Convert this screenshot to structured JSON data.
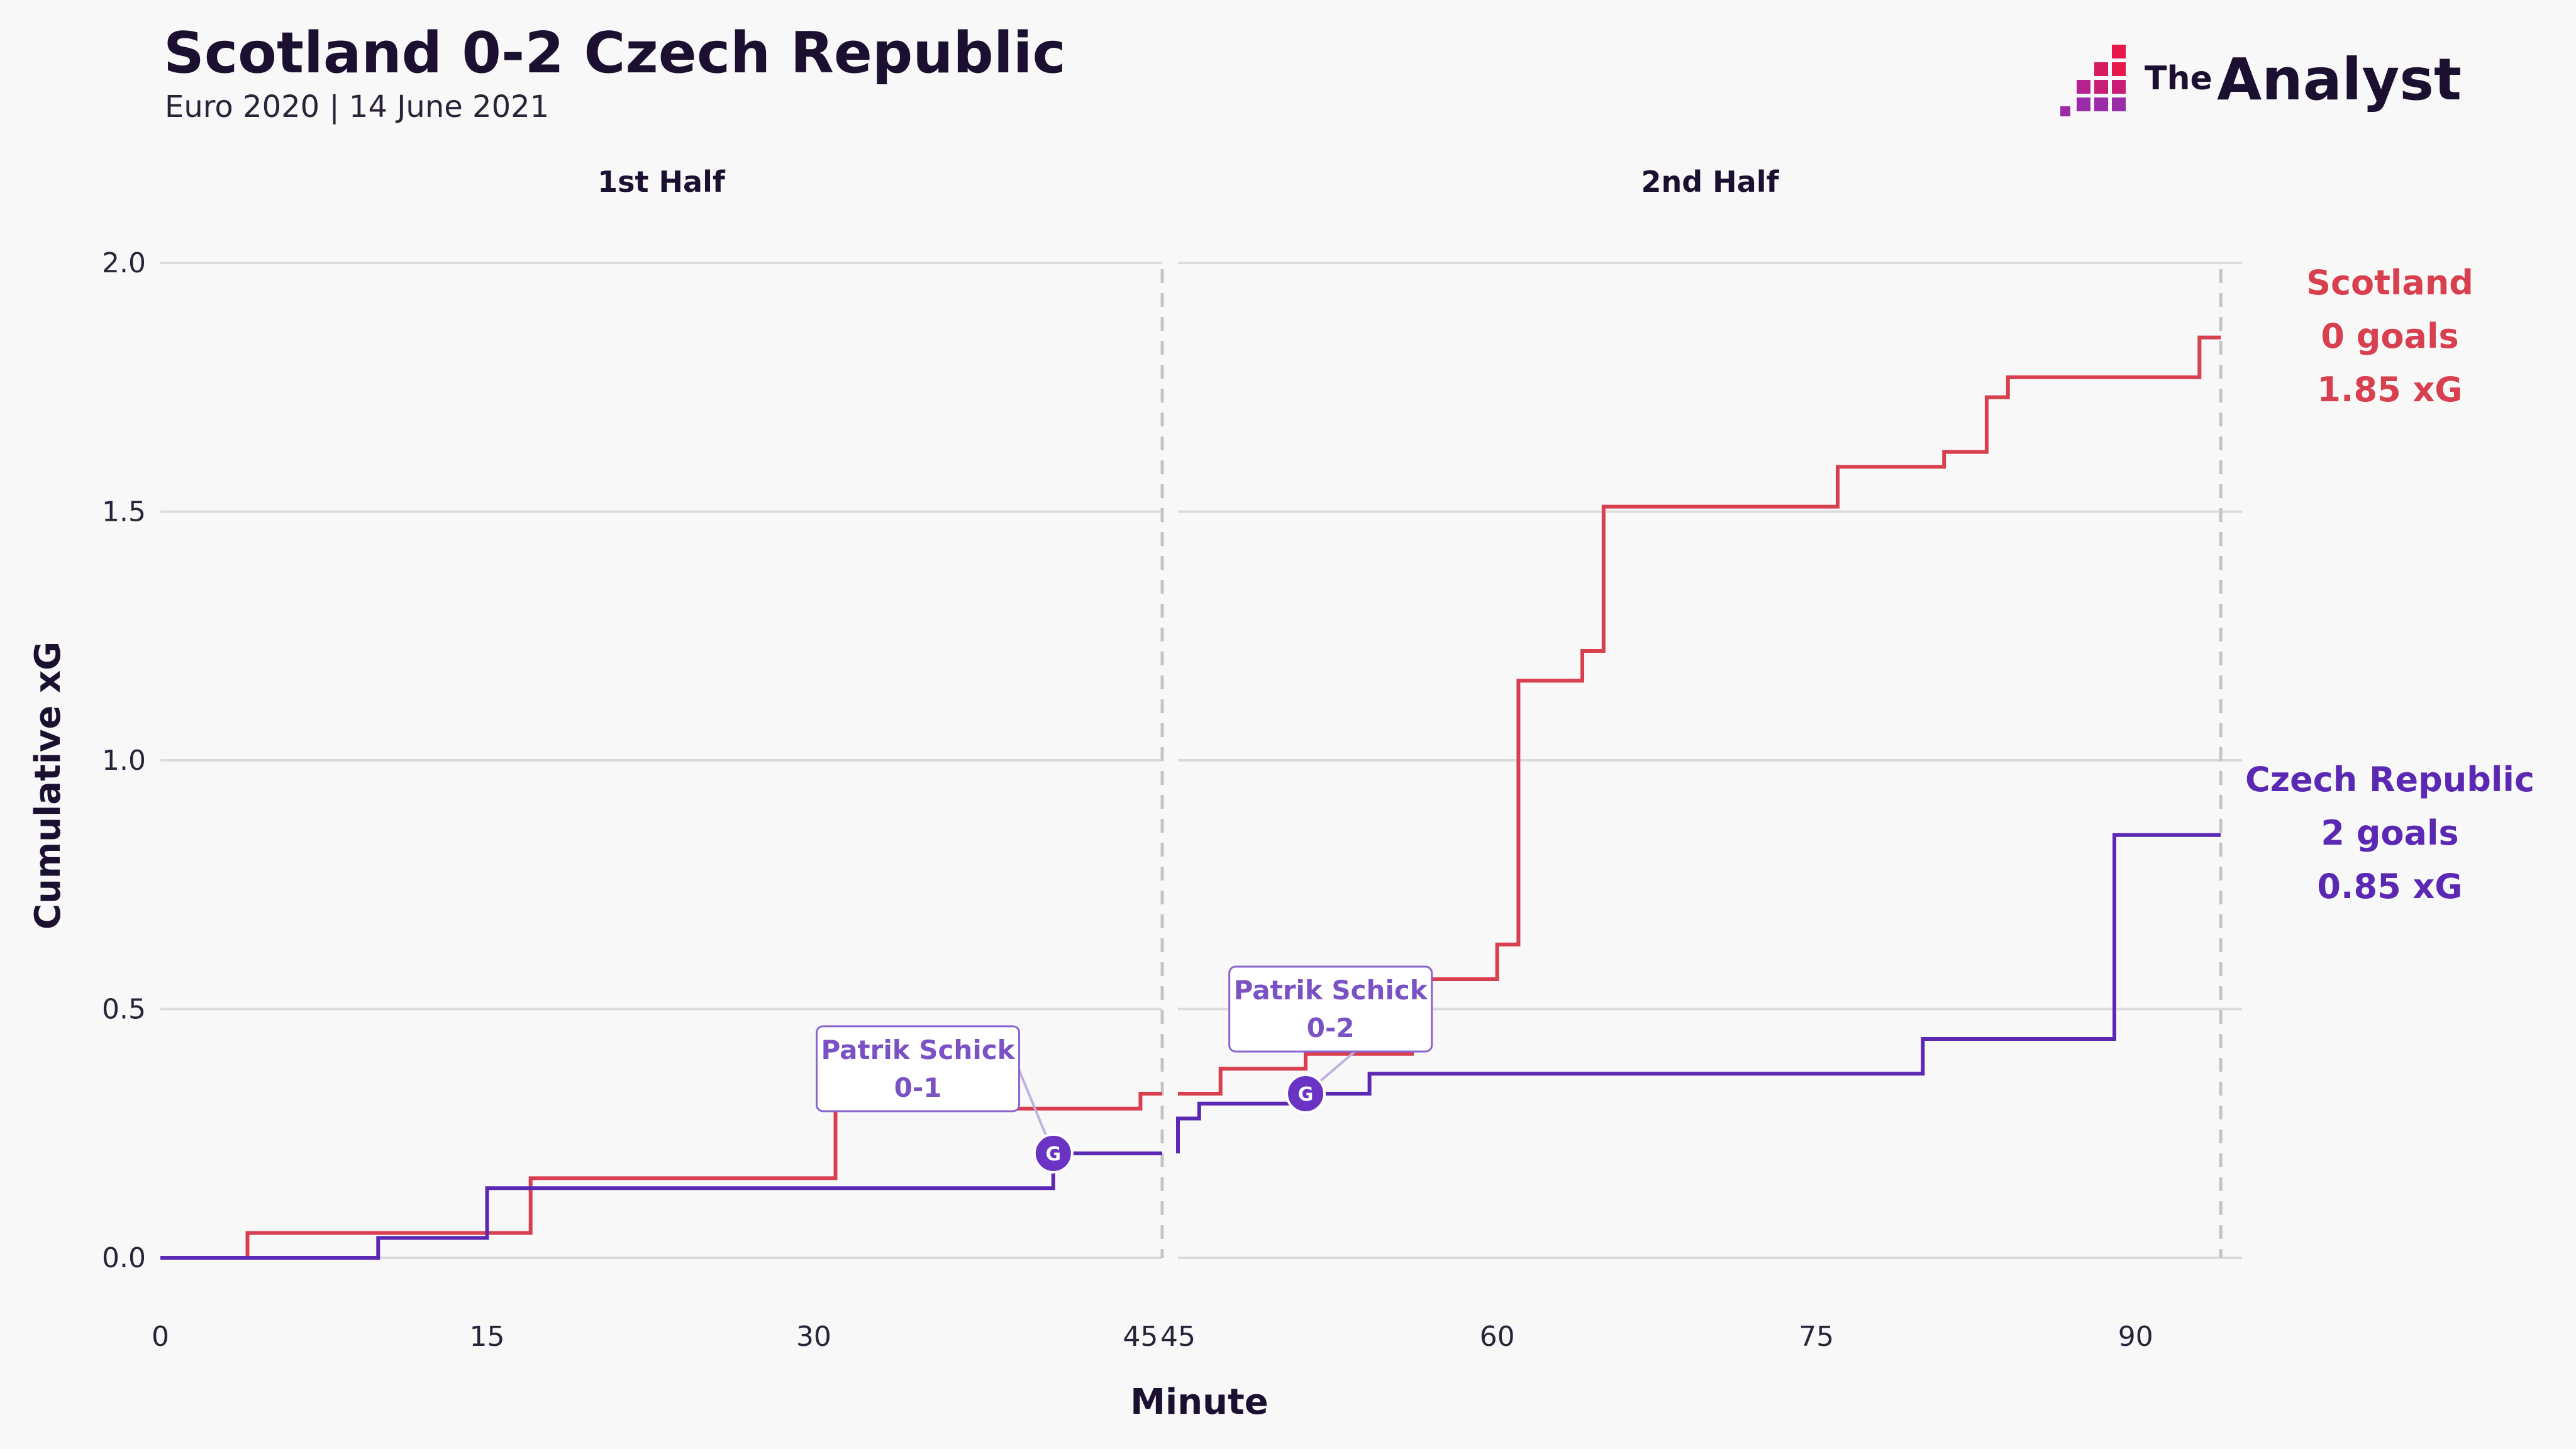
{
  "header": {
    "title": "Scotland 0-2 Czech Republic",
    "subtitle": "Euro 2020 | 14 June 2021"
  },
  "brand": {
    "name_small": "The",
    "name_big": "Analyst",
    "logo_icon": "pixel-staircase-icon",
    "logo_colors": [
      "#e8174b",
      "#c81d77",
      "#9b2ca8"
    ]
  },
  "chart_data": {
    "type": "line",
    "step": true,
    "xlabel": "Minute",
    "ylabel": "Cumulative xG",
    "ylim": [
      0,
      2.0
    ],
    "yticks": [
      "0.0",
      "0.5",
      "1.0",
      "1.5",
      "2.0"
    ],
    "grid": true,
    "panels": [
      {
        "title": "1st Half",
        "xlim": [
          0,
          46
        ],
        "xticks": [
          "0",
          "15",
          "30",
          "45"
        ],
        "xtick_values": [
          0,
          15,
          30,
          45
        ],
        "end_marker": 46,
        "series": [
          {
            "key": "scotland",
            "color": "#d8404f",
            "points": [
              [
                0,
                0
              ],
              [
                4,
                0
              ],
              [
                4,
                0.05
              ],
              [
                17,
                0.05
              ],
              [
                17,
                0.16
              ],
              [
                31,
                0.16
              ],
              [
                31,
                0.3
              ],
              [
                45,
                0.3
              ],
              [
                45,
                0.33
              ],
              [
                46,
                0.33
              ]
            ]
          },
          {
            "key": "czech",
            "color": "#5b28b4",
            "points": [
              [
                0,
                0
              ],
              [
                10,
                0
              ],
              [
                10,
                0.04
              ],
              [
                15,
                0.04
              ],
              [
                15,
                0.14
              ],
              [
                41,
                0.14
              ],
              [
                41,
                0.21
              ],
              [
                46,
                0.21
              ]
            ]
          }
        ],
        "goals": [
          {
            "x": 41,
            "y": 0.21,
            "marker": "G",
            "player": "Patrik Schick",
            "score": "0-1",
            "box_x": 31,
            "box_y": 0.38
          }
        ]
      },
      {
        "title": "2nd Half",
        "xlim": [
          45,
          95
        ],
        "xticks": [
          "45",
          "60",
          "75",
          "90"
        ],
        "xtick_values": [
          45,
          60,
          75,
          90
        ],
        "end_marker": 94,
        "series": [
          {
            "key": "scotland",
            "color": "#d8404f",
            "points": [
              [
                45,
                0.33
              ],
              [
                47,
                0.33
              ],
              [
                47,
                0.38
              ],
              [
                51,
                0.38
              ],
              [
                51,
                0.41
              ],
              [
                56,
                0.41
              ],
              [
                56,
                0.56
              ],
              [
                60,
                0.56
              ],
              [
                60,
                0.63
              ],
              [
                61,
                0.63
              ],
              [
                61,
                1.16
              ],
              [
                64,
                1.16
              ],
              [
                64,
                1.22
              ],
              [
                65,
                1.22
              ],
              [
                65,
                1.51
              ],
              [
                76,
                1.51
              ],
              [
                76,
                1.59
              ],
              [
                81,
                1.59
              ],
              [
                81,
                1.62
              ],
              [
                83,
                1.62
              ],
              [
                83,
                1.73
              ],
              [
                84,
                1.73
              ],
              [
                84,
                1.77
              ],
              [
                93,
                1.77
              ],
              [
                93,
                1.85
              ],
              [
                94,
                1.85
              ]
            ]
          },
          {
            "key": "czech",
            "color": "#5b28b4",
            "points": [
              [
                45,
                0.21
              ],
              [
                45,
                0.28
              ],
              [
                46,
                0.28
              ],
              [
                46,
                0.31
              ],
              [
                51,
                0.31
              ],
              [
                51,
                0.33
              ],
              [
                54,
                0.33
              ],
              [
                54,
                0.37
              ],
              [
                80,
                0.37
              ],
              [
                80,
                0.44
              ],
              [
                89,
                0.44
              ],
              [
                89,
                0.85
              ],
              [
                94,
                0.85
              ]
            ]
          }
        ],
        "goals": [
          {
            "x": 51,
            "y": 0.33,
            "marker": "G",
            "player": "Patrik Schick",
            "score": "0-2",
            "box_x": 48.3,
            "box_y": 0.5
          }
        ]
      }
    ],
    "teams": [
      {
        "key": "scotland",
        "name": "Scotland",
        "goals_text": "0 goals",
        "xg_text": "1.85 xG",
        "color": "#d8404f"
      },
      {
        "key": "czech",
        "name": "Czech Republic",
        "goals_text": "2 goals",
        "xg_text": "0.85 xG",
        "color": "#5b28b4"
      }
    ]
  }
}
